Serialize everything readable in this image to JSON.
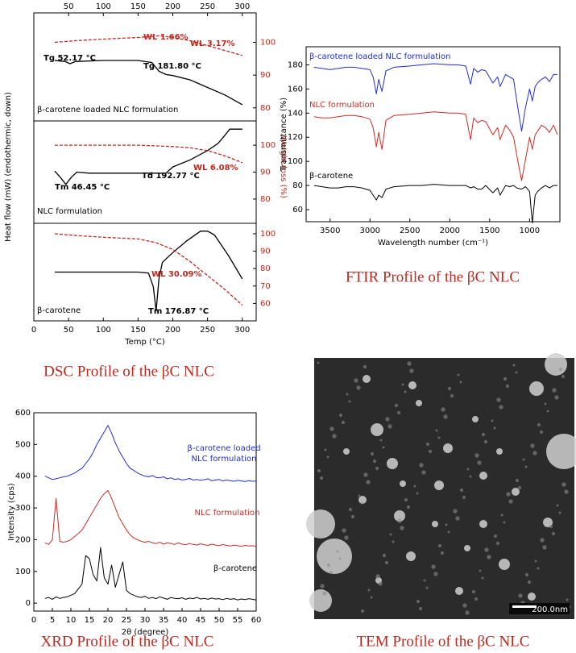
{
  "chart_data": [
    {
      "type": "dsc",
      "caption": "DSC Profile of the βC NLC",
      "xlabel": "Temp (°C)",
      "ylabel": "Heat flow (mW) (endothermic, down)",
      "y2label": "Weight loss (%)",
      "xlim": [
        0,
        320
      ],
      "xticks": [
        0,
        50,
        100,
        150,
        200,
        250,
        300
      ],
      "panels": [
        {
          "label": "β-carotene loaded NLC formulation",
          "ylim": [
            0,
            100
          ],
          "y2lim": [
            76,
            109
          ],
          "y2ticks": [
            80,
            90,
            100
          ],
          "annotations": [
            {
              "text": "WL 1.66%",
              "color": "#c0281e"
            },
            {
              "text": "WL 3.17%",
              "color": "#c0281e"
            },
            {
              "text": "Tg 52.17 °C",
              "color": "#000000"
            },
            {
              "text": "Tg 181.80 °C",
              "color": "#000000"
            }
          ],
          "series": [
            {
              "color": "#000000",
              "x": [
                30,
                45,
                52,
                60,
                100,
                150,
                170,
                180,
                190,
                200,
                225,
                250,
                275,
                300
              ],
              "values": [
                56,
                55,
                53,
                55,
                56,
                56,
                54,
                46,
                43,
                42,
                38,
                31,
                24,
                15
              ]
            },
            {
              "color": "#c0281e",
              "axis": "y2",
              "dash": true,
              "x": [
                30,
                60,
                100,
                150,
                180,
                200,
                225,
                250,
                275,
                300
              ],
              "values": [
                100,
                100.5,
                101,
                101.5,
                102,
                101.5,
                100.5,
                99,
                97.5,
                96
              ]
            }
          ]
        },
        {
          "label": "NLC formulation",
          "ylim": [
            0,
            100
          ],
          "y2lim": [
            71,
            109
          ],
          "y2ticks": [
            80,
            90,
            100
          ],
          "annotations": [
            {
              "text": "Tm 46.45 °C",
              "color": "#000000"
            },
            {
              "text": "Td 192.77 °C",
              "color": "#000000"
            },
            {
              "text": "WL 6.08%",
              "color": "#c0281e"
            }
          ],
          "series": [
            {
              "color": "#000000",
              "x": [
                30,
                38,
                46,
                54,
                62,
                80,
                100,
                150,
                190,
                200,
                225,
                250,
                265,
                275,
                282,
                300
              ],
              "values": [
                51,
                45,
                38,
                45,
                50,
                49,
                49,
                49,
                49,
                55,
                62,
                71,
                78,
                86,
                92,
                92
              ]
            },
            {
              "color": "#c0281e",
              "axis": "y2",
              "dash": true,
              "x": [
                30,
                100,
                150,
                200,
                225,
                250,
                275,
                300
              ],
              "values": [
                100,
                100,
                100,
                99.5,
                99,
                98,
                96,
                93.5
              ]
            }
          ]
        },
        {
          "label": "β-carotene",
          "ylim": [
            0,
            100
          ],
          "y2lim": [
            50,
            106
          ],
          "y2ticks": [
            60,
            70,
            80,
            90,
            100
          ],
          "annotations": [
            {
              "text": "WL 30.09%",
              "color": "#c0281e"
            },
            {
              "text": "Tm 176.87 °C",
              "color": "#000000"
            }
          ],
          "series": [
            {
              "color": "#000000",
              "x": [
                30,
                60,
                100,
                150,
                165,
                172,
                176,
                180,
                185,
                200,
                220,
                240,
                250,
                260,
                280,
                300
              ],
              "values": [
                50,
                50,
                50,
                50,
                49,
                35,
                10,
                43,
                60,
                70,
                82,
                92,
                92,
                88,
                67,
                43
              ]
            },
            {
              "color": "#c0281e",
              "axis": "y2",
              "dash": true,
              "x": [
                30,
                60,
                100,
                150,
                175,
                200,
                225,
                250,
                275,
                300
              ],
              "values": [
                100,
                99,
                98,
                97,
                95,
                91,
                84,
                76,
                68,
                59
              ]
            }
          ]
        }
      ]
    },
    {
      "type": "line",
      "caption": "FTIR Profile of the βC NLC",
      "xlabel": "Wavelength number (cm⁻¹)",
      "ylabel": "Transmittance (%)",
      "xlim": [
        3800,
        620
      ],
      "xticks": [
        3500,
        3000,
        2500,
        2000,
        1500,
        1000
      ],
      "ylim": [
        50,
        195
      ],
      "yticks": [
        60,
        80,
        100,
        120,
        140,
        160,
        180
      ],
      "x": [
        3700,
        3600,
        3500,
        3400,
        3300,
        3200,
        3100,
        3000,
        2960,
        2920,
        2890,
        2850,
        2800,
        2700,
        2500,
        2350,
        2200,
        2000,
        1900,
        1800,
        1740,
        1700,
        1650,
        1600,
        1550,
        1460,
        1400,
        1370,
        1300,
        1250,
        1200,
        1160,
        1100,
        1050,
        1000,
        965,
        930,
        900,
        850,
        800,
        750,
        700,
        650
      ],
      "series": [
        {
          "name": "β-carotene loaded NLC formulation",
          "color": "#1f2ed6",
          "values": [
            178,
            177,
            176,
            177,
            178,
            178,
            177,
            176,
            170,
            156,
            168,
            158,
            175,
            178,
            179,
            180,
            181,
            180,
            180,
            179,
            164,
            177,
            174,
            176,
            175,
            165,
            170,
            162,
            172,
            170,
            168,
            150,
            125,
            145,
            160,
            150,
            162,
            165,
            168,
            170,
            166,
            172,
            172
          ]
        },
        {
          "name": "NLC formulation",
          "color": "#d22a22",
          "values": [
            137,
            136,
            136,
            137,
            138,
            138,
            137,
            135,
            128,
            112,
            124,
            110,
            134,
            138,
            139,
            140,
            141,
            140,
            140,
            139,
            118,
            136,
            132,
            134,
            133,
            122,
            128,
            118,
            130,
            126,
            120,
            105,
            84,
            102,
            120,
            110,
            122,
            125,
            130,
            128,
            124,
            130,
            122
          ]
        },
        {
          "name": "β-carotene",
          "color": "#000000",
          "values": [
            80,
            79,
            78,
            78,
            79,
            79,
            78,
            76,
            72,
            68,
            72,
            70,
            77,
            79,
            80,
            80,
            81,
            80,
            80,
            80,
            78,
            79,
            77,
            77,
            80,
            74,
            78,
            72,
            80,
            79,
            80,
            78,
            77,
            79,
            75,
            49,
            72,
            75,
            78,
            80,
            78,
            80,
            80
          ]
        }
      ]
    },
    {
      "type": "line",
      "caption": "XRD Profile of the βC NLC",
      "xlabel": "2θ (degree)",
      "ylabel": "Intensity (cps)",
      "xlim": [
        0,
        60
      ],
      "xticks": [
        0,
        5,
        10,
        15,
        20,
        25,
        30,
        35,
        40,
        45,
        50,
        55,
        60
      ],
      "ylim": [
        -25,
        600
      ],
      "yticks": [
        0,
        100,
        200,
        300,
        400,
        500,
        600
      ],
      "x": [
        3,
        4,
        5,
        6,
        7,
        8,
        9,
        10,
        11,
        12,
        13,
        14,
        15,
        16,
        17,
        18,
        19,
        20,
        21,
        22,
        23,
        24,
        25,
        26,
        27,
        28,
        29,
        30,
        31,
        32,
        33,
        34,
        35,
        36,
        37,
        38,
        39,
        40,
        41,
        42,
        43,
        44,
        45,
        46,
        47,
        48,
        49,
        50,
        51,
        52,
        53,
        54,
        55,
        56,
        57,
        58,
        59,
        60
      ],
      "series": [
        {
          "label_lines": [
            "β-carotene loaded",
            "NLC formulation"
          ],
          "color": "#1f2ed6",
          "values": [
            400,
            395,
            390,
            392,
            395,
            398,
            400,
            405,
            410,
            418,
            425,
            440,
            455,
            475,
            500,
            520,
            540,
            560,
            535,
            505,
            480,
            460,
            440,
            425,
            418,
            410,
            405,
            400,
            398,
            402,
            396,
            395,
            398,
            392,
            395,
            390,
            392,
            388,
            390,
            393,
            388,
            390,
            387,
            389,
            392,
            386,
            388,
            390,
            385,
            388,
            386,
            384,
            387,
            385,
            383,
            386,
            384,
            385
          ]
        },
        {
          "label_lines": [
            "NLC formulation"
          ],
          "color": "#d22a22",
          "values": [
            190,
            185,
            200,
            330,
            195,
            192,
            195,
            200,
            210,
            220,
            230,
            250,
            270,
            290,
            310,
            330,
            345,
            355,
            330,
            300,
            270,
            250,
            230,
            215,
            205,
            200,
            195,
            192,
            195,
            190,
            188,
            192,
            186,
            190,
            188,
            185,
            190,
            186,
            184,
            188,
            185,
            183,
            187,
            184,
            182,
            186,
            183,
            181,
            185,
            182,
            180,
            183,
            181,
            179,
            182,
            180,
            181,
            179
          ]
        },
        {
          "label_lines": [
            "β-carotene"
          ],
          "color": "#000000",
          "values": [
            15,
            18,
            12,
            20,
            15,
            18,
            20,
            25,
            30,
            45,
            60,
            150,
            140,
            90,
            70,
            175,
            80,
            60,
            120,
            50,
            90,
            130,
            40,
            30,
            25,
            20,
            18,
            22,
            15,
            18,
            14,
            20,
            16,
            12,
            18,
            15,
            14,
            17,
            12,
            16,
            14,
            18,
            13,
            15,
            12,
            16,
            13,
            14,
            11,
            15,
            12,
            14,
            10,
            13,
            11,
            14,
            12,
            10
          ]
        }
      ]
    }
  ],
  "image": {
    "caption": "TEM Profile of the βC NLC",
    "scale_bar": "200.0nm"
  }
}
